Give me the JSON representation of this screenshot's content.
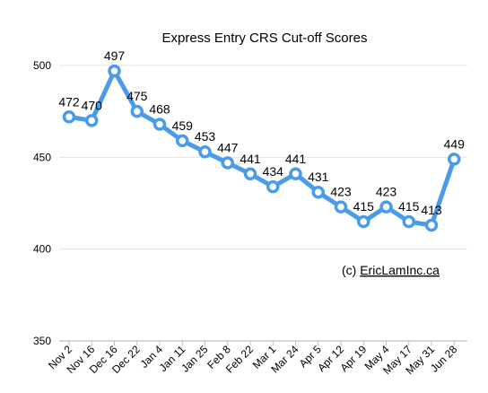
{
  "colors": {
    "line": "#4a9bea",
    "marker_fill": "#ffffff",
    "grid": "#e3e3e3",
    "axis": "#bfbfbf",
    "text": "#000000"
  },
  "credit": {
    "prefix": "(c) ",
    "link_text": "EricLamInc.ca"
  },
  "chart_data": {
    "type": "line",
    "title": "Express Entry CRS Cut-off Scores",
    "xlabel": "",
    "ylabel": "",
    "ylim": [
      350,
      500
    ],
    "yticks": [
      "500",
      "450",
      "400",
      "350"
    ],
    "grid": true,
    "legend": "none",
    "categories": [
      "Nov 2",
      "Nov 16",
      "Dec 16",
      "Dec 22",
      "Jan 4",
      "Jan 11",
      "Jan 25",
      "Feb 8",
      "Feb 22",
      "Mar 1",
      "Mar 24",
      "Apr 5",
      "Apr 12",
      "Apr 19",
      "May 4",
      "May 17",
      "May 31",
      "Jun 28"
    ],
    "series": [
      {
        "values": [
          472,
          470,
          497,
          475,
          468,
          459,
          453,
          447,
          441,
          434,
          441,
          431,
          423,
          415,
          423,
          415,
          413,
          449
        ]
      }
    ],
    "data_labels": [
      "472",
      "470",
      "497",
      "475",
      "468",
      "459",
      "453",
      "447",
      "441",
      "434",
      "441",
      "431",
      "423",
      "415",
      "423",
      "415",
      "413",
      "449"
    ]
  }
}
